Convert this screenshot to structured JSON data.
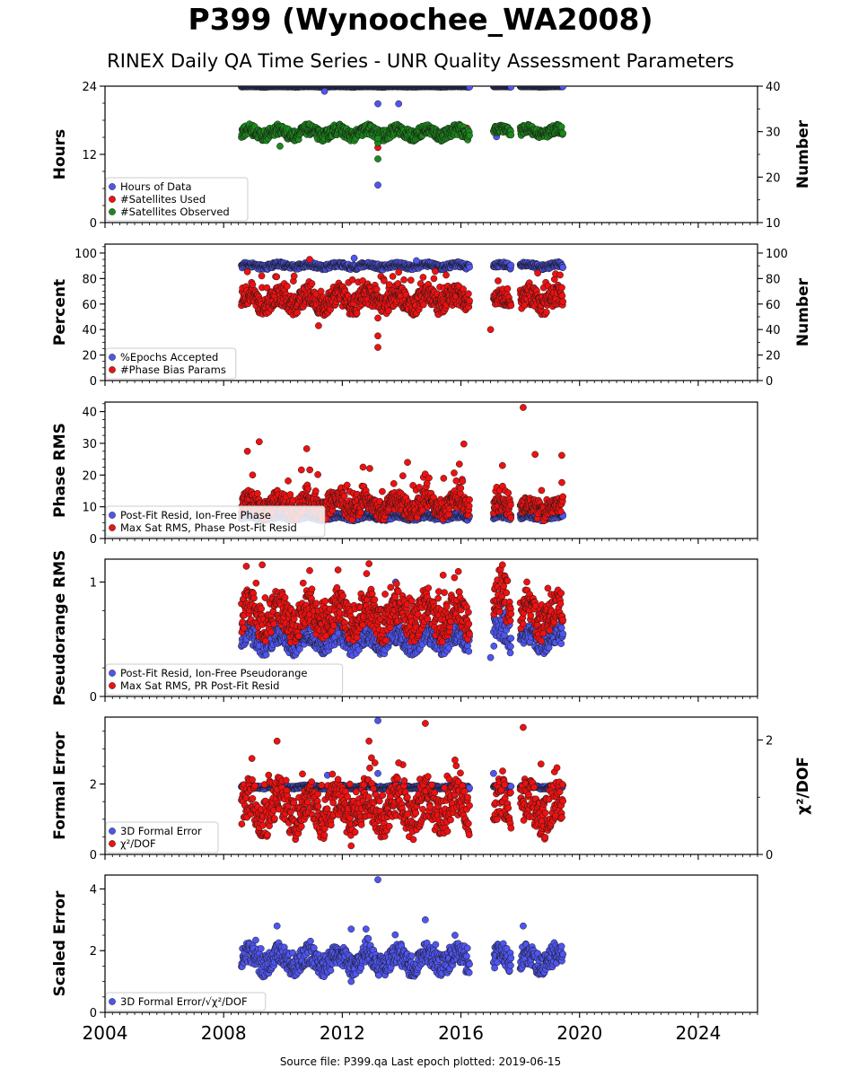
{
  "title": "P399 (Wynoochee_WA2008)",
  "subtitle": "RINEX Daily QA Time Series - UNR Quality Assessment Parameters",
  "footer": "Source file: P399.qa Last epoch plotted: 2019-06-15",
  "colors": {
    "blue": "#4f55f0",
    "red": "#ee1111",
    "green": "#1a8a1a",
    "edge": "#1a1a1a"
  },
  "chart_data": [
    {
      "type": "scatter",
      "ylabel": "Hours",
      "ylabel_right": "Number",
      "xlim": [
        2004.0,
        2026.0
      ],
      "ylim": [
        0,
        24
      ],
      "ylim_right": [
        10,
        40
      ],
      "yticks": [
        {
          "v": 0,
          "label": "0"
        },
        {
          "v": 12,
          "label": "12"
        },
        {
          "v": 24,
          "label": "24"
        }
      ],
      "yticks_right": [
        {
          "v": 10,
          "label": "10"
        },
        {
          "v": 20,
          "label": "20"
        },
        {
          "v": 30,
          "label": "30"
        },
        {
          "v": 40,
          "label": "40"
        }
      ],
      "legend_position": "lower-left",
      "series": [
        {
          "name": "Hours of Data",
          "color": "blue",
          "axis": "left",
          "points": [
            [
              2013.2,
              20.9
            ],
            [
              2013.9,
              20.9
            ],
            [
              2011.4,
              23.1
            ],
            [
              2013.2,
              6.6
            ],
            [
              2017.2,
              15.1
            ],
            [
              2013.2,
              14.1
            ]
          ],
          "bands": [
            {
              "x0": 2008.6,
              "x1": 2016.3,
              "mid": 23.92,
              "amp": 0.06
            },
            {
              "x0": 2017.1,
              "x1": 2017.7,
              "mid": 23.92,
              "amp": 0.06
            },
            {
              "x0": 2018.0,
              "x1": 2019.45,
              "mid": 23.92,
              "amp": 0.06
            }
          ]
        },
        {
          "name": "#Satellites Used",
          "color": "red",
          "axis": "right",
          "points": [
            [
              2013.2,
              26.5
            ],
            [
              2016.2,
              30.8
            ],
            [
              2009.5,
              30.0
            ]
          ],
          "bands": []
        },
        {
          "name": "#Satellites Observed",
          "color": "green",
          "axis": "right",
          "points": [
            [
              2013.2,
              24.0
            ],
            [
              2013.2,
              27.5
            ],
            [
              2013.2,
              28.5
            ],
            [
              2009.9,
              26.8
            ]
          ],
          "bands": [
            {
              "x0": 2008.6,
              "x1": 2016.3,
              "mid": 29.8,
              "amp": 1.2
            },
            {
              "x0": 2017.1,
              "x1": 2017.7,
              "mid": 30.2,
              "amp": 0.8
            },
            {
              "x0": 2018.0,
              "x1": 2019.45,
              "mid": 30.0,
              "amp": 1.0
            }
          ]
        }
      ]
    },
    {
      "type": "scatter",
      "ylabel": "Percent",
      "ylabel_right": "Number",
      "xlim": [
        2004.0,
        2026.0
      ],
      "ylim": [
        0,
        107
      ],
      "ylim_right": [
        0,
        107
      ],
      "yticks": [
        {
          "v": 0,
          "label": "0"
        },
        {
          "v": 20,
          "label": "20"
        },
        {
          "v": 40,
          "label": "40"
        },
        {
          "v": 60,
          "label": "60"
        },
        {
          "v": 80,
          "label": "80"
        },
        {
          "v": 100,
          "label": "100"
        }
      ],
      "yticks_right": [
        {
          "v": 0,
          "label": "0"
        },
        {
          "v": 20,
          "label": "20"
        },
        {
          "v": 40,
          "label": "40"
        },
        {
          "v": 60,
          "label": "60"
        },
        {
          "v": 80,
          "label": "80"
        },
        {
          "v": 100,
          "label": "100"
        }
      ],
      "legend_position": "lower-left",
      "series": [
        {
          "name": "%Epochs Accepted",
          "color": "blue",
          "axis": "left",
          "points": [
            [
              2012.4,
              96.0
            ],
            [
              2014.5,
              94.0
            ]
          ],
          "bands": [
            {
              "x0": 2008.6,
              "x1": 2016.3,
              "mid": 90.0,
              "amp": 2.0
            },
            {
              "x0": 2017.1,
              "x1": 2017.7,
              "mid": 90.0,
              "amp": 2.0
            },
            {
              "x0": 2018.0,
              "x1": 2019.45,
              "mid": 90.0,
              "amp": 2.0
            }
          ]
        },
        {
          "name": "#Phase Bias Params",
          "color": "red",
          "axis": "left",
          "points": [
            [
              2013.2,
              26.0
            ],
            [
              2013.2,
              35.0
            ],
            [
              2013.2,
              49.0
            ],
            [
              2011.2,
              43.0
            ],
            [
              2017.0,
              40.0
            ],
            [
              2010.9,
              95.0
            ],
            [
              2013.9,
              85.0
            ]
          ],
          "bands": [
            {
              "x0": 2008.6,
              "x1": 2016.3,
              "mid": 63.0,
              "amp": 8.0,
              "spike": 18.0
            },
            {
              "x0": 2017.1,
              "x1": 2017.7,
              "mid": 62.0,
              "amp": 6.0,
              "spike": 18.0
            },
            {
              "x0": 2018.0,
              "x1": 2019.45,
              "mid": 63.0,
              "amp": 8.0,
              "spike": 18.0
            }
          ]
        }
      ]
    },
    {
      "type": "scatter",
      "ylabel": "Phase RMS",
      "ylabel_right": "",
      "xlim": [
        2004.0,
        2026.0
      ],
      "ylim": [
        0,
        43
      ],
      "yticks": [
        {
          "v": 0,
          "label": "0"
        },
        {
          "v": 10,
          "label": "10"
        },
        {
          "v": 20,
          "label": "20"
        },
        {
          "v": 30,
          "label": "30"
        },
        {
          "v": 40,
          "label": "40"
        }
      ],
      "legend_position": "lower-left",
      "series": [
        {
          "name": "Post-Fit Resid, Ion-Free Phase",
          "color": "blue",
          "axis": "left",
          "points": [],
          "bands": [
            {
              "x0": 2008.6,
              "x1": 2016.3,
              "mid": 6.8,
              "amp": 0.8
            },
            {
              "x0": 2017.1,
              "x1": 2017.7,
              "mid": 6.8,
              "amp": 0.8
            },
            {
              "x0": 2018.0,
              "x1": 2019.45,
              "mid": 6.8,
              "amp": 0.8
            }
          ]
        },
        {
          "name": "Max Sat RMS, Phase Post-Fit Resid",
          "color": "red",
          "axis": "left",
          "points": [
            [
              2008.8,
              27.5
            ],
            [
              2009.2,
              30.5
            ],
            [
              2010.8,
              28.3
            ],
            [
              2016.1,
              29.8
            ],
            [
              2018.1,
              41.3
            ],
            [
              2018.5,
              26.5
            ],
            [
              2019.4,
              26.2
            ],
            [
              2017.4,
              23.0
            ],
            [
              2014.2,
              24.0
            ],
            [
              2012.7,
              22.5
            ]
          ],
          "bands": [
            {
              "x0": 2008.6,
              "x1": 2016.3,
              "mid": 10.5,
              "amp": 3.0,
              "spike": 9.0
            },
            {
              "x0": 2017.1,
              "x1": 2017.7,
              "mid": 9.5,
              "amp": 2.5,
              "spike": 7.0
            },
            {
              "x0": 2018.0,
              "x1": 2019.45,
              "mid": 9.5,
              "amp": 2.5,
              "spike": 7.0
            }
          ]
        }
      ]
    },
    {
      "type": "scatter",
      "ylabel": "Pseudorange RMS",
      "ylabel_right": "",
      "xlim": [
        2004.0,
        2026.0
      ],
      "ylim": [
        0,
        1.2
      ],
      "yticks": [
        {
          "v": 0,
          "label": "0"
        },
        {
          "v": 1,
          "label": "1"
        }
      ],
      "legend_position": "lower-left",
      "series": [
        {
          "name": "Post-Fit Resid, Ion-Free Pseudorange",
          "color": "blue",
          "axis": "left",
          "points": [
            [
              2017.0,
              0.34
            ],
            [
              2013.8,
              1.0
            ]
          ],
          "bands": [
            {
              "x0": 2008.6,
              "x1": 2016.3,
              "mid": 0.5,
              "amp": 0.09
            },
            {
              "x0": 2017.1,
              "x1": 2017.7,
              "mid": 0.55,
              "amp": 0.15
            },
            {
              "x0": 2018.0,
              "x1": 2019.45,
              "mid": 0.5,
              "amp": 0.08
            }
          ]
        },
        {
          "name": "Max Sat RMS, PR Post-Fit Resid",
          "color": "red",
          "axis": "left",
          "points": [
            [
              2009.3,
              1.15
            ],
            [
              2012.9,
              1.16
            ],
            [
              2017.4,
              1.15
            ],
            [
              2015.4,
              1.06
            ],
            [
              2010.9,
              1.1
            ]
          ],
          "bands": [
            {
              "x0": 2008.6,
              "x1": 2016.3,
              "mid": 0.7,
              "amp": 0.15,
              "spike": 0.25
            },
            {
              "x0": 2017.1,
              "x1": 2017.7,
              "mid": 0.8,
              "amp": 0.2,
              "spike": 0.25
            },
            {
              "x0": 2018.0,
              "x1": 2019.45,
              "mid": 0.7,
              "amp": 0.15,
              "spike": 0.2
            }
          ]
        }
      ]
    },
    {
      "type": "scatter",
      "ylabel": "Formal Error",
      "ylabel_right": "χ²/DOF",
      "xlim": [
        2004.0,
        2026.0
      ],
      "ylim": [
        0,
        3.9
      ],
      "ylim_right": [
        0,
        2.4
      ],
      "yticks": [
        {
          "v": 0,
          "label": "0"
        },
        {
          "v": 2,
          "label": "2"
        }
      ],
      "yticks_right": [
        {
          "v": 0,
          "label": "0"
        },
        {
          "v": 2,
          "label": "2"
        }
      ],
      "legend_position": "lower-left",
      "series": [
        {
          "name": "3D Formal Error",
          "color": "blue",
          "axis": "left",
          "points": [
            [
              2013.2,
              3.8
            ],
            [
              2013.2,
              2.3
            ],
            [
              2017.1,
              2.3
            ],
            [
              2011.5,
              2.25
            ]
          ],
          "bands": [
            {
              "x0": 2008.6,
              "x1": 2016.3,
              "mid": 1.92,
              "amp": 0.04
            },
            {
              "x0": 2017.1,
              "x1": 2017.7,
              "mid": 1.92,
              "amp": 0.04
            },
            {
              "x0": 2018.0,
              "x1": 2019.45,
              "mid": 1.92,
              "amp": 0.04
            }
          ]
        },
        {
          "name": "χ²/DOF",
          "color": "red",
          "axis": "right",
          "points": [
            [
              2009.8,
              1.98
            ],
            [
              2014.8,
              2.29
            ],
            [
              2018.1,
              2.22
            ],
            [
              2012.9,
              1.98
            ],
            [
              2013.9,
              1.6
            ],
            [
              2013.1,
              1.6
            ],
            [
              2012.3,
              0.15
            ],
            [
              2015.8,
              1.65
            ],
            [
              2018.7,
              1.58
            ]
          ],
          "bands": [
            {
              "x0": 2008.6,
              "x1": 2016.3,
              "mid": 0.8,
              "amp": 0.35,
              "spike": 0.45
            },
            {
              "x0": 2017.1,
              "x1": 2017.7,
              "mid": 0.8,
              "amp": 0.35,
              "spike": 0.3
            },
            {
              "x0": 2018.0,
              "x1": 2019.45,
              "mid": 0.8,
              "amp": 0.35,
              "spike": 0.3
            }
          ]
        }
      ]
    },
    {
      "type": "scatter",
      "ylabel": "Scaled Error",
      "ylabel_right": "",
      "xlabel": "",
      "xlim": [
        2004.0,
        2026.0
      ],
      "ylim": [
        0,
        4.45
      ],
      "yticks": [
        {
          "v": 0,
          "label": "0"
        },
        {
          "v": 2,
          "label": "2"
        },
        {
          "v": 4,
          "label": "4"
        }
      ],
      "xticks": [
        {
          "v": 2004,
          "label": "2004"
        },
        {
          "v": 2008,
          "label": "2008"
        },
        {
          "v": 2012,
          "label": "2012"
        },
        {
          "v": 2016,
          "label": "2016"
        },
        {
          "v": 2020,
          "label": "2020"
        },
        {
          "v": 2024,
          "label": "2024"
        }
      ],
      "legend_position": "lower-left",
      "series": [
        {
          "name": "3D Formal Error/√χ²/DOF",
          "color": "blue",
          "axis": "left",
          "points": [
            [
              2013.2,
              4.3
            ],
            [
              2014.8,
              3.0
            ],
            [
              2009.8,
              2.8
            ],
            [
              2018.1,
              2.8
            ],
            [
              2012.3,
              2.7
            ],
            [
              2012.8,
              2.7
            ],
            [
              2012.3,
              1.0
            ],
            [
              2015.8,
              2.5
            ]
          ],
          "bands": [
            {
              "x0": 2008.6,
              "x1": 2016.3,
              "mid": 1.7,
              "amp": 0.35,
              "spike": 0.3
            },
            {
              "x0": 2017.1,
              "x1": 2017.7,
              "mid": 1.7,
              "amp": 0.35,
              "spike": 0.3
            },
            {
              "x0": 2018.0,
              "x1": 2019.45,
              "mid": 1.7,
              "amp": 0.35,
              "spike": 0.3
            }
          ]
        }
      ]
    }
  ]
}
